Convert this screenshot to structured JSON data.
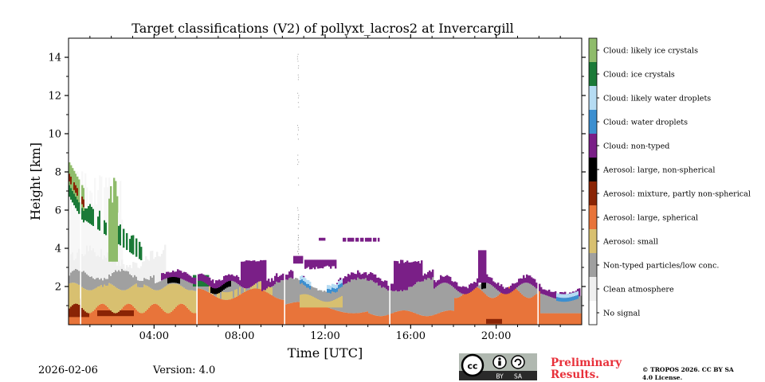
{
  "chart_data": {
    "type": "heatmap",
    "title": "Target classifications (V2) of pollyxt_lacros2 at Invercargill",
    "xlabel": "Time [UTC]",
    "ylabel": "Height [km]",
    "xlim": [
      0,
      24
    ],
    "ylim": [
      0,
      15
    ],
    "xticks": [
      4,
      8,
      12,
      16,
      20
    ],
    "xtick_labels": [
      "04:00",
      "08:00",
      "12:00",
      "16:00",
      "20:00"
    ],
    "yticks": [
      2,
      4,
      6,
      8,
      10,
      12,
      14
    ],
    "ytick_labels": [
      "2",
      "4",
      "6",
      "8",
      "10",
      "12",
      "14"
    ],
    "classes": [
      {
        "label": "Cloud: likely ice crystals",
        "color": "#8fbc6b"
      },
      {
        "label": "Cloud: ice crystals",
        "color": "#1b7a38"
      },
      {
        "label": "Cloud: likely water droplets",
        "color": "#b6dcf3"
      },
      {
        "label": "Cloud: water droplets",
        "color": "#3c8fd0"
      },
      {
        "label": "Cloud: non-typed",
        "color": "#7a1f87"
      },
      {
        "label": "Aerosol: large, non-spherical",
        "color": "#000000"
      },
      {
        "label": "Aerosol: mixture, partly non-spherical",
        "color": "#8a2405"
      },
      {
        "label": "Aerosol: large, spherical",
        "color": "#e8743a"
      },
      {
        "label": "Aerosol: small",
        "color": "#d8c070"
      },
      {
        "label": "Non-typed particles/low conc.",
        "color": "#a0a0a0"
      },
      {
        "label": "Clean atmosphere",
        "color": "#f0f0f0"
      },
      {
        "label": "No signal",
        "color": "#ffffff"
      }
    ],
    "layers_approx": [
      {
        "class": "Aerosol: large, spherical",
        "time_range": [
          0,
          24
        ],
        "height_range": [
          0,
          0.8
        ]
      },
      {
        "class": "Aerosol: small",
        "time_range": [
          0,
          6
        ],
        "height_range": [
          0.8,
          2.0
        ]
      },
      {
        "class": "Non-typed particles/low conc.",
        "time_range": [
          6,
          24
        ],
        "height_range": [
          0.8,
          2.2
        ]
      },
      {
        "class": "Cloud: non-typed",
        "time_range": [
          8,
          22
        ],
        "height_range": [
          2.0,
          3.5
        ]
      },
      {
        "class": "Cloud: ice crystals",
        "time_range": [
          0,
          3.5
        ],
        "height_range": [
          3,
          8.5
        ]
      },
      {
        "class": "Clean atmosphere",
        "time_range": [
          10.6,
          10.8
        ],
        "height_range": [
          4,
          14.3
        ]
      }
    ]
  },
  "footer": {
    "date": "2026-02-06",
    "version": "Version: 4.0",
    "preliminary": "Preliminary Results.",
    "copyright": "© TROPOS 2026. CC BY SA 4.0 License.",
    "license_badge": {
      "cc": "cc",
      "by": "BY",
      "sa": "SA"
    }
  },
  "colors": {
    "preliminary": "#e8303a"
  }
}
